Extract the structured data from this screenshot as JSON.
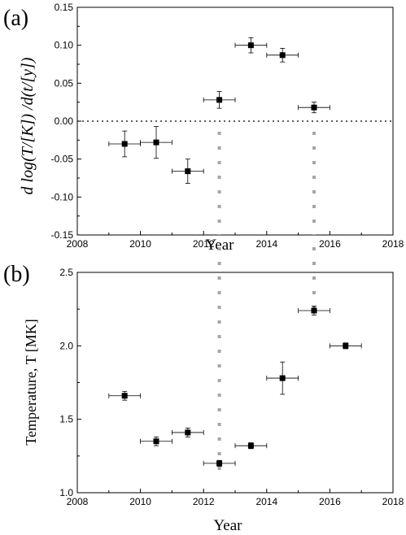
{
  "chart_data": [
    {
      "panel_label": "(a)",
      "type": "scatter",
      "xlabel": "Year",
      "ylabel": "d log(T/[K]) /d(t/[y])",
      "xlim": [
        2008,
        2018
      ],
      "ylim": [
        -0.15,
        0.15
      ],
      "x_ticks": [
        2008,
        2010,
        2012,
        2014,
        2016,
        2018
      ],
      "y_ticks": [
        -0.15,
        -0.1,
        -0.05,
        0.0,
        0.05,
        0.1,
        0.15
      ],
      "y_tick_labels": [
        "-0.15",
        "-0.10",
        "-0.05",
        "0.00",
        "0.05",
        "0.10",
        "0.15"
      ],
      "reference_line_y": 0.0,
      "vertical_markers_x": [
        2012.5,
        2015.5
      ],
      "points": [
        {
          "x": 2009.5,
          "y": -0.03,
          "xerr": 0.5,
          "yerr": 0.017
        },
        {
          "x": 2010.5,
          "y": -0.028,
          "xerr": 0.5,
          "yerr": 0.021
        },
        {
          "x": 2011.5,
          "y": -0.066,
          "xerr": 0.5,
          "yerr": 0.016
        },
        {
          "x": 2012.5,
          "y": 0.028,
          "xerr": 0.5,
          "yerr": 0.011
        },
        {
          "x": 2013.5,
          "y": 0.1,
          "xerr": 0.5,
          "yerr": 0.01
        },
        {
          "x": 2014.5,
          "y": 0.087,
          "xerr": 0.5,
          "yerr": 0.009
        },
        {
          "x": 2015.5,
          "y": 0.018,
          "xerr": 0.5,
          "yerr": 0.007
        }
      ]
    },
    {
      "panel_label": "(b)",
      "type": "scatter",
      "xlabel": "Year",
      "ylabel": "Temperature, T [MK]",
      "xlim": [
        2008,
        2018
      ],
      "ylim": [
        1.0,
        2.5
      ],
      "x_ticks": [
        2008,
        2010,
        2012,
        2014,
        2016,
        2018
      ],
      "y_ticks": [
        1.0,
        1.5,
        2.0,
        2.5
      ],
      "y_tick_labels": [
        "1.0",
        "1.5",
        "2.0",
        "2.5"
      ],
      "vertical_markers_x": [
        2012.5,
        2015.5
      ],
      "points": [
        {
          "x": 2009.5,
          "y": 1.66,
          "xerr": 0.5,
          "yerr": 0.03
        },
        {
          "x": 2010.5,
          "y": 1.35,
          "xerr": 0.5,
          "yerr": 0.03
        },
        {
          "x": 2011.5,
          "y": 1.41,
          "xerr": 0.5,
          "yerr": 0.03
        },
        {
          "x": 2012.5,
          "y": 1.2,
          "xerr": 0.5,
          "yerr": 0.02
        },
        {
          "x": 2013.5,
          "y": 1.32,
          "xerr": 0.5,
          "yerr": 0.02
        },
        {
          "x": 2014.5,
          "y": 1.78,
          "xerr": 0.5,
          "yerr": 0.11
        },
        {
          "x": 2015.5,
          "y": 2.24,
          "xerr": 0.5,
          "yerr": 0.03
        },
        {
          "x": 2016.5,
          "y": 2.0,
          "xerr": 0.5,
          "yerr": 0.02
        }
      ]
    }
  ],
  "colors": {
    "marker": "#000000",
    "errorbar": "#000000",
    "vertical_marker": "#a6a6a6",
    "axis": "#000000"
  }
}
